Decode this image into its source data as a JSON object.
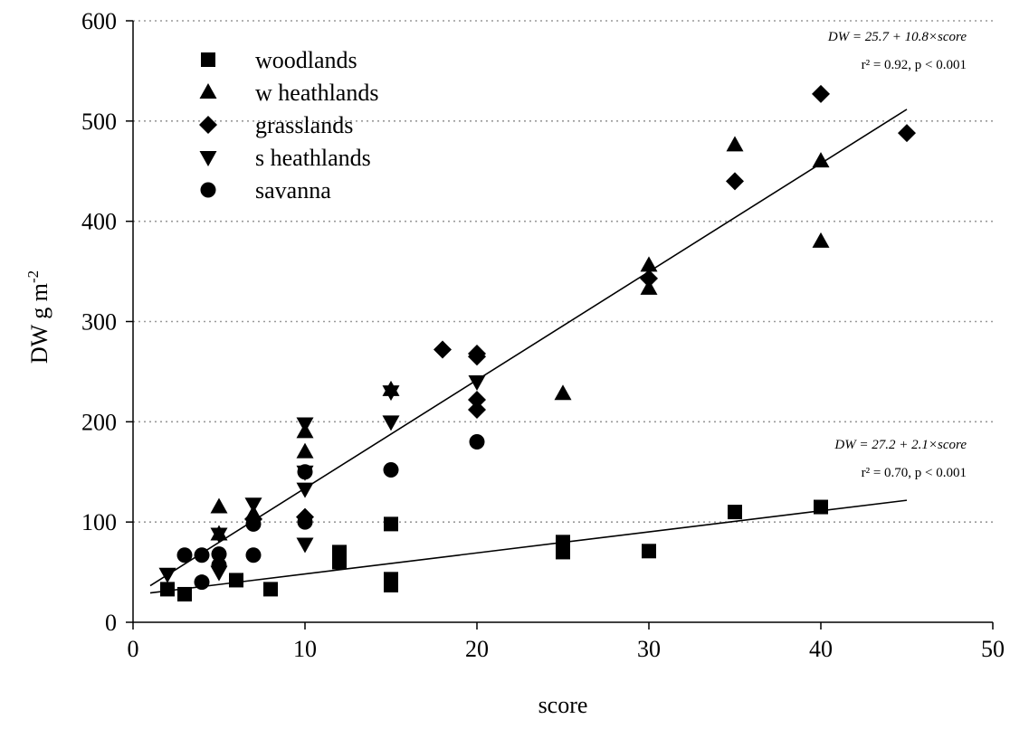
{
  "chart_data": {
    "type": "scatter",
    "xlabel": "score",
    "ylabel": "DW g m",
    "ylabel_sup": "-2",
    "xlim": [
      0,
      50
    ],
    "ylim": [
      0,
      600
    ],
    "xticks": [
      0,
      10,
      20,
      30,
      40,
      50
    ],
    "yticks": [
      0,
      100,
      200,
      300,
      400,
      500,
      600
    ],
    "grid": "horizontal dotted",
    "legend_position": "top-left",
    "series": [
      {
        "name": "woodlands",
        "marker": "square",
        "points": [
          [
            2,
            33
          ],
          [
            3,
            28
          ],
          [
            6,
            42
          ],
          [
            8,
            33
          ],
          [
            12,
            70
          ],
          [
            12,
            60
          ],
          [
            15,
            98
          ],
          [
            15,
            43
          ],
          [
            15,
            37
          ],
          [
            25,
            80
          ],
          [
            25,
            70
          ],
          [
            30,
            71
          ],
          [
            35,
            110
          ],
          [
            40,
            115
          ]
        ]
      },
      {
        "name": "w heathlands",
        "marker": "triangle-up",
        "points": [
          [
            5,
            115
          ],
          [
            5,
            88
          ],
          [
            7,
            108
          ],
          [
            10,
            190
          ],
          [
            10,
            170
          ],
          [
            15,
            232
          ],
          [
            25,
            228
          ],
          [
            30,
            356
          ],
          [
            30,
            333
          ],
          [
            35,
            476
          ],
          [
            40,
            460
          ],
          [
            40,
            380
          ]
        ]
      },
      {
        "name": "grasslands",
        "marker": "diamond",
        "points": [
          [
            7,
            103
          ],
          [
            10,
            105
          ],
          [
            18,
            272
          ],
          [
            20,
            268
          ],
          [
            20,
            265
          ],
          [
            20,
            222
          ],
          [
            20,
            212
          ],
          [
            30,
            343
          ],
          [
            35,
            440
          ],
          [
            40,
            527
          ],
          [
            45,
            488
          ]
        ]
      },
      {
        "name": "s heathlands",
        "marker": "triangle-down",
        "points": [
          [
            2,
            48
          ],
          [
            5,
            88
          ],
          [
            5,
            50
          ],
          [
            7,
            118
          ],
          [
            10,
            198
          ],
          [
            10,
            150
          ],
          [
            10,
            133
          ],
          [
            10,
            78
          ],
          [
            15,
            230
          ],
          [
            15,
            200
          ],
          [
            20,
            240
          ]
        ]
      },
      {
        "name": "savanna",
        "marker": "circle",
        "points": [
          [
            3,
            67
          ],
          [
            4,
            67
          ],
          [
            4,
            40
          ],
          [
            5,
            68
          ],
          [
            5,
            57
          ],
          [
            7,
            98
          ],
          [
            7,
            67
          ],
          [
            10,
            150
          ],
          [
            10,
            100
          ],
          [
            15,
            152
          ],
          [
            20,
            180
          ]
        ]
      }
    ],
    "regressions": [
      {
        "intercept": 25.7,
        "slope": 10.8,
        "x_range": [
          1,
          45
        ],
        "equation": "DW = 25.7 + 10.8×score",
        "stats": "r² = 0.92, p < 0.001"
      },
      {
        "intercept": 27.2,
        "slope": 2.1,
        "x_range": [
          1,
          45
        ],
        "equation": "DW = 27.2 + 2.1×score",
        "stats": "r² = 0.70, p < 0.001"
      }
    ]
  }
}
